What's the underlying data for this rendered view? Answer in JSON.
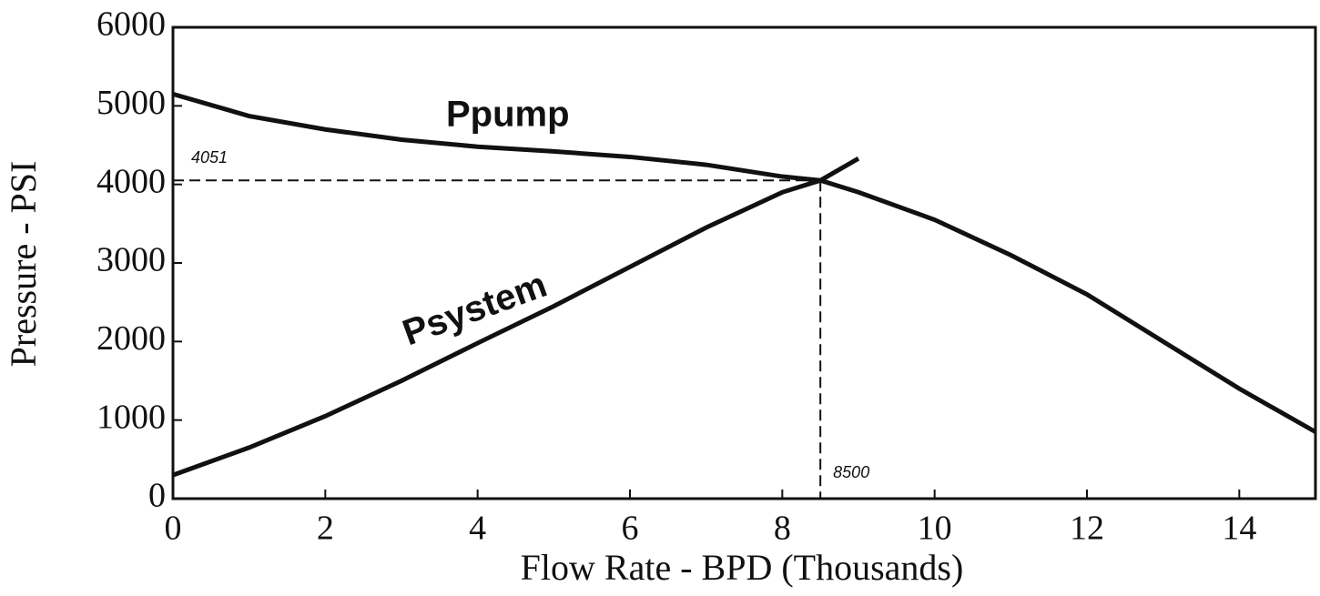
{
  "chart_data": {
    "type": "line",
    "xlabel": "Flow Rate - BPD (Thousands)",
    "ylabel": "Pressure - PSI",
    "xlim": [
      0,
      15
    ],
    "ylim": [
      0,
      6000
    ],
    "xticks": [
      0,
      2,
      4,
      6,
      8,
      10,
      12,
      14
    ],
    "yticks": [
      0,
      1000,
      2000,
      3000,
      4000,
      5000,
      6000
    ],
    "series": [
      {
        "name": "Ppump",
        "color": "#111111",
        "x": [
          0,
          1,
          2,
          3,
          4,
          5,
          6,
          7,
          8,
          8.5,
          9,
          10,
          11,
          12,
          13,
          14,
          15
        ],
        "values": [
          5150,
          4870,
          4700,
          4570,
          4480,
          4420,
          4350,
          4250,
          4100,
          4051,
          3900,
          3550,
          3100,
          2600,
          2000,
          1400,
          850
        ]
      },
      {
        "name": "Psystem",
        "color": "#111111",
        "x": [
          0,
          1,
          2,
          3,
          4,
          5,
          6,
          7,
          8,
          8.5,
          9
        ],
        "values": [
          300,
          650,
          1050,
          1500,
          1980,
          2450,
          2950,
          3450,
          3900,
          4051,
          4330
        ]
      }
    ],
    "annotations": [
      {
        "text": "4051",
        "y": 4051
      },
      {
        "text": "8500",
        "x": 8.5
      }
    ]
  }
}
